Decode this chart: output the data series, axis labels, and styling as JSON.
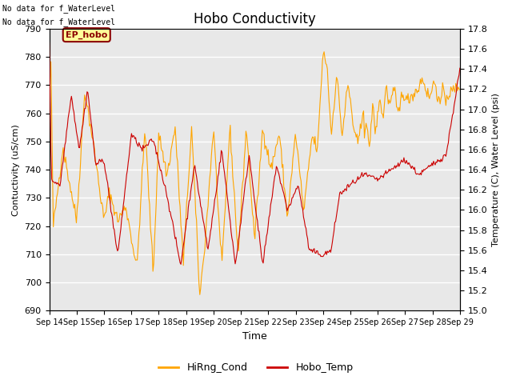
{
  "title": "Hobo Conductivity",
  "xlabel": "Time",
  "ylabel_left": "Contuctivity (uS/cm)",
  "ylabel_right": "Temperature (C), Water Level (psi)",
  "annotation_line1": "No data for f_WaterLevel",
  "annotation_line2": "No data for f_WaterLevel",
  "ep_hobo_label": "EP_hobo",
  "legend_entries": [
    "HiRng_Cond",
    "Hobo_Temp"
  ],
  "legend_colors": [
    "#FFA500",
    "#CC0000"
  ],
  "ylim_left": [
    690,
    790
  ],
  "ylim_right": [
    15.0,
    17.8
  ],
  "yticks_left": [
    690,
    700,
    710,
    720,
    730,
    740,
    750,
    760,
    770,
    780,
    790
  ],
  "yticks_right": [
    15.0,
    15.2,
    15.4,
    15.6,
    15.8,
    16.0,
    16.2,
    16.4,
    16.6,
    16.8,
    17.0,
    17.2,
    17.4,
    17.6,
    17.8
  ],
  "xtick_labels": [
    "Sep 14",
    "Sep 15",
    "Sep 16",
    "Sep 17",
    "Sep 18",
    "Sep 19",
    "Sep 20",
    "Sep 21",
    "Sep 22",
    "Sep 23",
    "Sep 24",
    "Sep 25",
    "Sep 26",
    "Sep 27",
    "Sep 28",
    "Sep 29"
  ],
  "background_color": "#E8E8E8",
  "line_color_cond": "#FFA500",
  "line_color_temp": "#CC0000",
  "grid_color": "#FFFFFF",
  "ep_hobo_bg": "#FFFF99",
  "ep_hobo_border": "#8B0000",
  "ep_hobo_text_color": "#8B0000",
  "figsize": [
    6.4,
    4.8
  ],
  "dpi": 100
}
